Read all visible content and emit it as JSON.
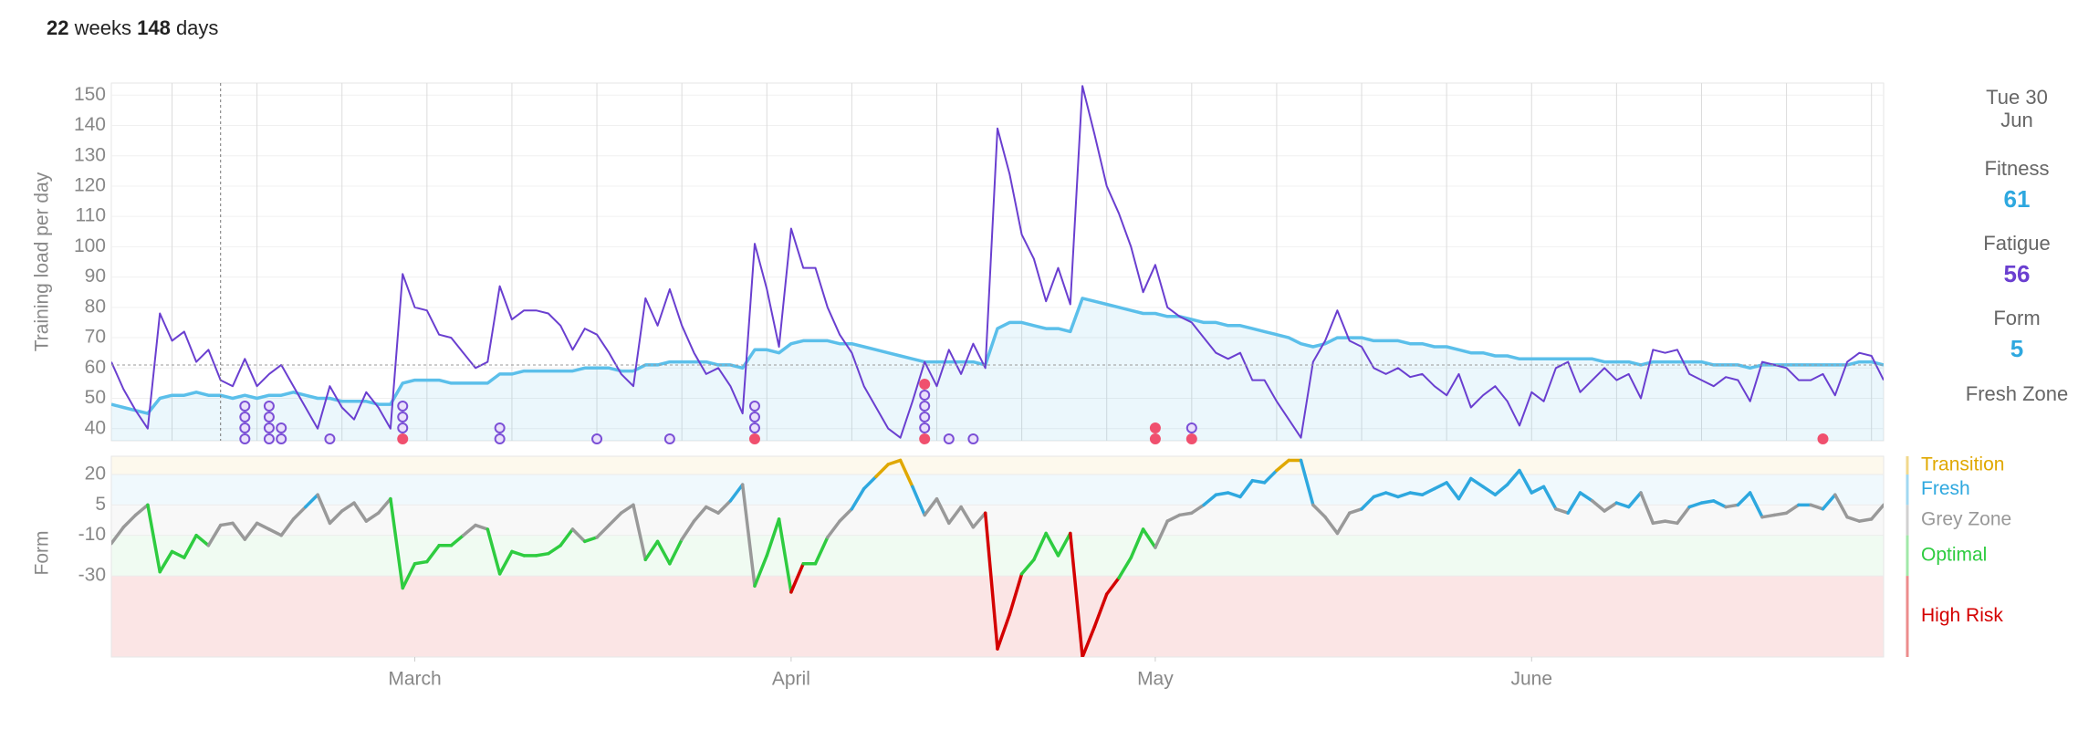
{
  "header": {
    "weeks": 22,
    "weeks_label": "weeks",
    "days": 148,
    "days_label": "days"
  },
  "sidebar": {
    "day": "Tue 30",
    "month": "Jun",
    "zone": "Fresh Zone"
  },
  "chart_data": [
    {
      "type": "line",
      "y_label": "Training load per day",
      "xlim": [
        0,
        146
      ],
      "ylim": [
        36,
        154
      ],
      "yticks": [
        40,
        50,
        60,
        70,
        80,
        90,
        100,
        110,
        120,
        130,
        140,
        150
      ],
      "xgrid": [
        5,
        12,
        19,
        26,
        33,
        40,
        47,
        54,
        61,
        68,
        75,
        82,
        89,
        96,
        103,
        110,
        117,
        124,
        131,
        138,
        145
      ],
      "cursor_x": 9,
      "x": [
        0,
        1,
        2,
        3,
        4,
        5,
        6,
        7,
        8,
        9,
        10,
        11,
        12,
        13,
        14,
        15,
        16,
        17,
        18,
        19,
        20,
        21,
        22,
        23,
        24,
        25,
        26,
        27,
        28,
        29,
        30,
        31,
        32,
        33,
        34,
        35,
        36,
        37,
        38,
        39,
        40,
        41,
        42,
        43,
        44,
        45,
        46,
        47,
        48,
        49,
        50,
        51,
        52,
        53,
        54,
        55,
        56,
        57,
        58,
        59,
        60,
        61,
        62,
        63,
        64,
        65,
        66,
        67,
        68,
        69,
        70,
        71,
        72,
        73,
        74,
        75,
        76,
        77,
        78,
        79,
        80,
        81,
        82,
        83,
        84,
        85,
        86,
        87,
        88,
        89,
        90,
        91,
        92,
        93,
        94,
        95,
        96,
        97,
        98,
        99,
        100,
        101,
        102,
        103,
        104,
        105,
        106,
        107,
        108,
        109,
        110,
        111,
        112,
        113,
        114,
        115,
        116,
        117,
        118,
        119,
        120,
        121,
        122,
        123,
        124,
        125,
        126,
        127,
        128,
        129,
        130,
        131,
        132,
        133,
        134,
        135,
        136,
        137,
        138,
        139,
        140,
        141,
        142,
        143,
        144,
        145,
        146
      ],
      "series": [
        {
          "name": "Fitness",
          "color": "#5bbfea",
          "values": [
            48,
            47,
            46,
            45,
            50,
            51,
            51,
            52,
            51,
            51,
            50,
            51,
            50,
            51,
            51,
            52,
            51,
            50,
            50,
            49,
            49,
            49,
            48,
            48,
            55,
            56,
            56,
            56,
            55,
            55,
            55,
            55,
            58,
            58,
            59,
            59,
            59,
            59,
            59,
            60,
            60,
            60,
            59,
            59,
            61,
            61,
            62,
            62,
            62,
            62,
            61,
            61,
            60,
            66,
            66,
            65,
            68,
            69,
            69,
            69,
            68,
            68,
            67,
            66,
            65,
            64,
            63,
            62,
            62,
            62,
            62,
            62,
            61,
            73,
            75,
            75,
            74,
            73,
            73,
            72,
            83,
            82,
            81,
            80,
            79,
            78,
            78,
            77,
            77,
            76,
            75,
            75,
            74,
            74,
            73,
            72,
            71,
            70,
            68,
            67,
            68,
            70,
            70,
            70,
            69,
            69,
            69,
            68,
            68,
            67,
            67,
            66,
            65,
            65,
            64,
            64,
            63,
            63,
            63,
            63,
            63,
            63,
            63,
            62,
            62,
            62,
            61,
            62,
            62,
            62,
            62,
            62,
            61,
            61,
            61,
            60,
            61,
            61,
            61,
            61,
            61,
            61,
            61,
            61,
            62,
            62,
            61
          ]
        },
        {
          "name": "Fatigue",
          "color": "#6a3fd0",
          "values": [
            62,
            53,
            46,
            40,
            78,
            69,
            72,
            62,
            66,
            56,
            54,
            63,
            54,
            58,
            61,
            54,
            47,
            40,
            54,
            47,
            43,
            52,
            47,
            40,
            91,
            80,
            79,
            71,
            70,
            65,
            60,
            62,
            87,
            76,
            79,
            79,
            78,
            74,
            66,
            73,
            71,
            65,
            58,
            54,
            83,
            74,
            86,
            74,
            65,
            58,
            60,
            54,
            45,
            101,
            86,
            67,
            106,
            93,
            93,
            80,
            71,
            65,
            54,
            47,
            40,
            37,
            49,
            62,
            54,
            66,
            58,
            68,
            60,
            139,
            124,
            104,
            96,
            82,
            93,
            81,
            153,
            137,
            120,
            111,
            100,
            85,
            94,
            80,
            77,
            75,
            70,
            65,
            63,
            65,
            56,
            56,
            49,
            43,
            37,
            62,
            69,
            79,
            69,
            67,
            60,
            58,
            60,
            57,
            58,
            54,
            51,
            58,
            47,
            51,
            54,
            49,
            41,
            52,
            49,
            60,
            62,
            52,
            56,
            60,
            56,
            58,
            50,
            66,
            65,
            66,
            58,
            56,
            54,
            57,
            56,
            49,
            62,
            61,
            60,
            56,
            56,
            58,
            51,
            62,
            65,
            64,
            56
          ]
        }
      ],
      "activities": [
        {
          "x": 11,
          "colors": [
            "#7b4fd6",
            "#7b4fd6",
            "#7b4fd6",
            "#7b4fd6"
          ]
        },
        {
          "x": 13,
          "colors": [
            "#7b4fd6",
            "#7b4fd6",
            "#7b4fd6",
            "#7b4fd6"
          ]
        },
        {
          "x": 14,
          "colors": [
            "#7b4fd6",
            "#7b4fd6"
          ]
        },
        {
          "x": 18,
          "colors": [
            "#7b4fd6"
          ]
        },
        {
          "x": 24,
          "colors": [
            "#f0506e",
            "#7b4fd6",
            "#7b4fd6",
            "#7b4fd6"
          ]
        },
        {
          "x": 32,
          "colors": [
            "#7b4fd6",
            "#7b4fd6"
          ]
        },
        {
          "x": 40,
          "colors": [
            "#7b4fd6"
          ]
        },
        {
          "x": 46,
          "colors": [
            "#7b4fd6"
          ]
        },
        {
          "x": 53,
          "colors": [
            "#f0506e",
            "#7b4fd6",
            "#7b4fd6",
            "#7b4fd6"
          ]
        },
        {
          "x": 67,
          "colors": [
            "#f0506e",
            "#7b4fd6",
            "#7b4fd6",
            "#7b4fd6",
            "#7b4fd6",
            "#f0506e"
          ]
        },
        {
          "x": 69,
          "colors": [
            "#7b4fd6"
          ]
        },
        {
          "x": 71,
          "colors": [
            "#7b4fd6"
          ]
        },
        {
          "x": 86,
          "colors": [
            "#f0506e",
            "#f0506e"
          ]
        },
        {
          "x": 89,
          "colors": [
            "#f0506e",
            "#7b4fd6"
          ]
        },
        {
          "x": 141,
          "colors": [
            "#f0506e"
          ]
        }
      ]
    },
    {
      "type": "form",
      "y_label": "Form",
      "xlim": [
        0,
        146
      ],
      "ylim": [
        -70,
        29
      ],
      "yticks": [
        20,
        5,
        -10,
        -30
      ],
      "xticks": [
        {
          "value": 25,
          "label": "March"
        },
        {
          "value": 56,
          "label": "April"
        },
        {
          "value": 86,
          "label": "May"
        },
        {
          "value": 117,
          "label": "June"
        }
      ],
      "zones": [
        {
          "name": "Transition",
          "min": 20,
          "color": "#e0a800"
        },
        {
          "name": "Fresh",
          "min": 5,
          "color": "#2ea8df"
        },
        {
          "name": "Grey Zone",
          "min": -10,
          "color": "#999999"
        },
        {
          "name": "Optimal",
          "min": -30,
          "color": "#2ecc40"
        },
        {
          "name": "High Risk",
          "min": -70,
          "color": "#d40000"
        }
      ],
      "x": [
        0,
        1,
        2,
        3,
        4,
        5,
        6,
        7,
        8,
        9,
        10,
        11,
        12,
        13,
        14,
        15,
        16,
        17,
        18,
        19,
        20,
        21,
        22,
        23,
        24,
        25,
        26,
        27,
        28,
        29,
        30,
        31,
        32,
        33,
        34,
        35,
        36,
        37,
        38,
        39,
        40,
        41,
        42,
        43,
        44,
        45,
        46,
        47,
        48,
        49,
        50,
        51,
        52,
        53,
        54,
        55,
        56,
        57,
        58,
        59,
        60,
        61,
        62,
        63,
        64,
        65,
        66,
        67,
        68,
        69,
        70,
        71,
        72,
        73,
        74,
        75,
        76,
        77,
        78,
        79,
        80,
        81,
        82,
        83,
        84,
        85,
        86,
        87,
        88,
        89,
        90,
        91,
        92,
        93,
        94,
        95,
        96,
        97,
        98,
        99,
        100,
        101,
        102,
        103,
        104,
        105,
        106,
        107,
        108,
        109,
        110,
        111,
        112,
        113,
        114,
        115,
        116,
        117,
        118,
        119,
        120,
        121,
        122,
        123,
        124,
        125,
        126,
        127,
        128,
        129,
        130,
        131,
        132,
        133,
        134,
        135,
        136,
        137,
        138,
        139,
        140,
        141,
        142,
        143,
        144,
        145,
        146
      ],
      "series": [
        {
          "name": "Form",
          "color": "#2ea8df",
          "values": [
            -14,
            -6,
            0,
            5,
            -28,
            -18,
            -21,
            -10,
            -15,
            -5,
            -4,
            -12,
            -4,
            -7,
            -10,
            -2,
            4,
            10,
            -4,
            2,
            6,
            -3,
            1,
            8,
            -36,
            -24,
            -23,
            -15,
            -15,
            -10,
            -5,
            -7,
            -29,
            -18,
            -20,
            -20,
            -19,
            -15,
            -7,
            -13,
            -11,
            -5,
            1,
            5,
            -22,
            -13,
            -24,
            -12,
            -3,
            4,
            1,
            7,
            15,
            -35,
            -20,
            -2,
            -38,
            -24,
            -24,
            -11,
            -3,
            3,
            13,
            19,
            25,
            27,
            14,
            0,
            8,
            -4,
            4,
            -6,
            1,
            -66,
            -49,
            -29,
            -22,
            -9,
            -20,
            -9,
            -70,
            -55,
            -39,
            -31,
            -21,
            -7,
            -16,
            -3,
            0,
            1,
            5,
            10,
            11,
            9,
            17,
            16,
            22,
            27,
            27,
            5,
            -1,
            -9,
            1,
            3,
            9,
            11,
            9,
            11,
            10,
            13,
            16,
            8,
            18,
            14,
            10,
            15,
            22,
            11,
            14,
            3,
            1,
            11,
            7,
            2,
            6,
            4,
            11,
            -4,
            -3,
            -4,
            4,
            6,
            7,
            4,
            5,
            11,
            -1,
            0,
            1,
            5,
            5,
            3,
            10,
            -1,
            -3,
            -2,
            5
          ]
        }
      ]
    }
  ]
}
